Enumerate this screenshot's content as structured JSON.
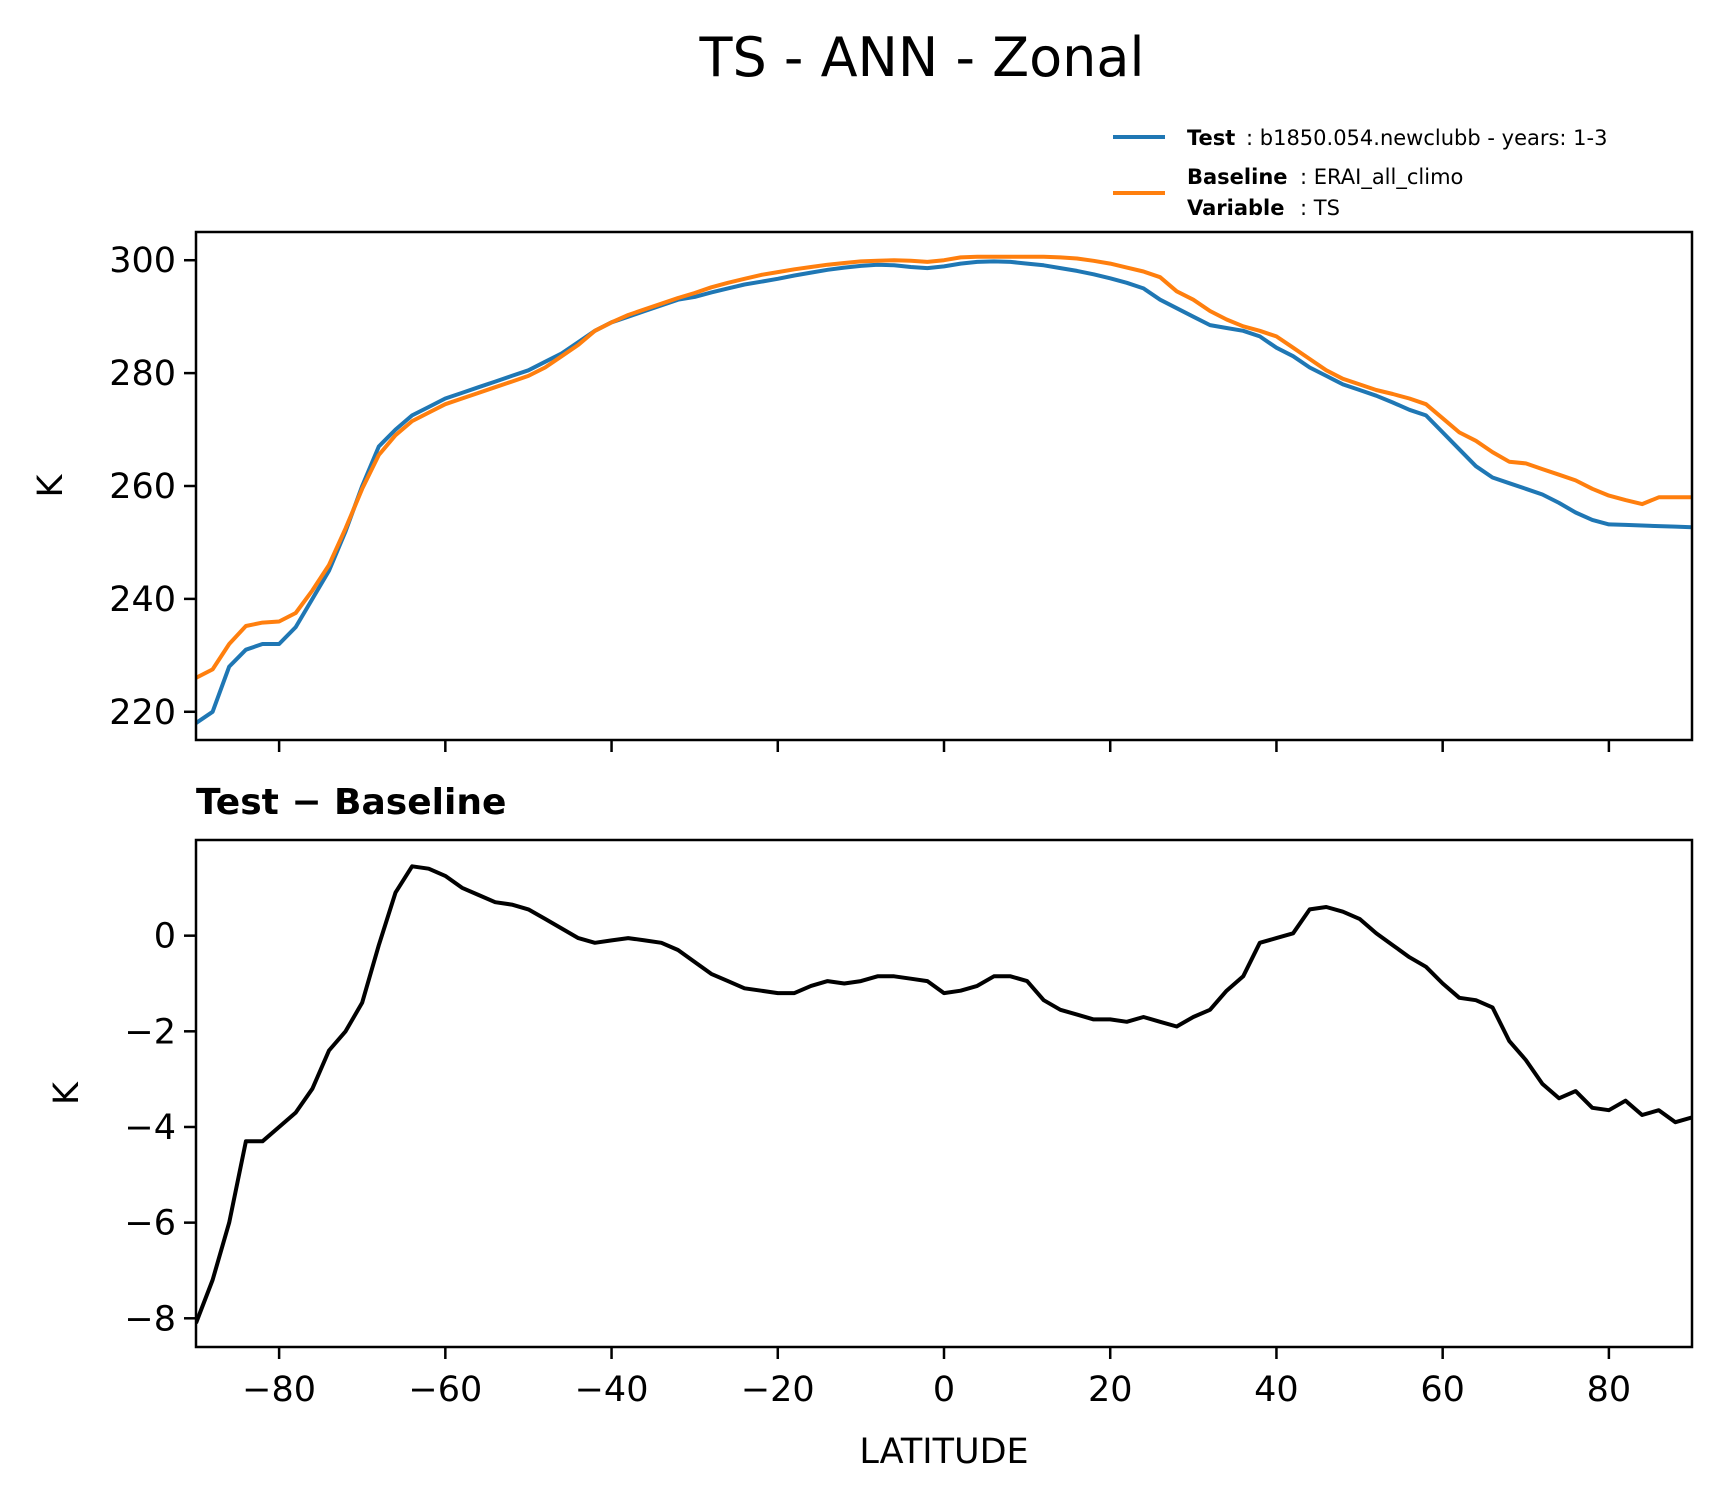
{
  "figure": {
    "title": "TS - ANN - Zonal"
  },
  "legend": {
    "test_key": "Test",
    "test_value": ": b1850.054.newclubb - years: 1-3",
    "baseline_key": "Baseline",
    "baseline_value": ": ERAI_all_climo",
    "variable_key": "Variable",
    "variable_value": ": TS"
  },
  "chart_data": [
    {
      "type": "line",
      "title": "",
      "xlabel": "",
      "ylabel": "K",
      "xlim": [
        -90,
        90
      ],
      "ylim": [
        215,
        305
      ],
      "xticks": [
        -80,
        -60,
        -40,
        -20,
        0,
        20,
        40,
        60,
        80
      ],
      "yticks": [
        220,
        240,
        260,
        280,
        300
      ],
      "ytick_labels": [
        "220",
        "240",
        "260",
        "280",
        "300"
      ],
      "x": [
        -90,
        -88,
        -86,
        -84,
        -82,
        -80,
        -78,
        -76,
        -74,
        -72,
        -70,
        -68,
        -66,
        -64,
        -62,
        -60,
        -58,
        -56,
        -54,
        -52,
        -50,
        -48,
        -46,
        -44,
        -42,
        -40,
        -38,
        -36,
        -34,
        -32,
        -30,
        -28,
        -26,
        -24,
        -22,
        -20,
        -18,
        -16,
        -14,
        -12,
        -10,
        -8,
        -6,
        -4,
        -2,
        0,
        2,
        4,
        6,
        8,
        10,
        12,
        14,
        16,
        18,
        20,
        22,
        24,
        26,
        28,
        30,
        32,
        34,
        36,
        38,
        40,
        42,
        44,
        46,
        48,
        50,
        52,
        54,
        56,
        58,
        60,
        62,
        64,
        66,
        68,
        70,
        72,
        74,
        76,
        78,
        80,
        82,
        84,
        86,
        88,
        90
      ],
      "series": [
        {
          "name": "Test",
          "color": "#1f77b4",
          "values": [
            218,
            220,
            228,
            231,
            232,
            232,
            235,
            240,
            245,
            252,
            260,
            267,
            270,
            272.5,
            274,
            275.5,
            276.5,
            277.5,
            278.5,
            279.5,
            280.5,
            282,
            283.5,
            285.5,
            287.5,
            289,
            290,
            291,
            292,
            293,
            293.5,
            294.3,
            295,
            295.7,
            296.2,
            296.7,
            297.3,
            297.8,
            298.3,
            298.7,
            299,
            299.2,
            299.1,
            298.8,
            298.6,
            298.9,
            299.4,
            299.7,
            299.8,
            299.7,
            299.4,
            299.1,
            298.6,
            298.1,
            297.5,
            296.8,
            296,
            295,
            293,
            291.5,
            290,
            288.5,
            288,
            287.5,
            286.5,
            284.5,
            283,
            281,
            279.5,
            278,
            277,
            276,
            274.8,
            273.5,
            272.5,
            269.5,
            266.5,
            263.5,
            261.5,
            260.5,
            259.5,
            258.5,
            257,
            255.3,
            254,
            253.2,
            253.1,
            253,
            252.9,
            252.8,
            252.7
          ]
        },
        {
          "name": "Baseline",
          "color": "#ff7f0e",
          "values": [
            226,
            227.5,
            232,
            235.2,
            235.8,
            236,
            237.5,
            241.5,
            246,
            252.5,
            259.5,
            265.5,
            269,
            271.5,
            273,
            274.5,
            275.5,
            276.5,
            277.5,
            278.5,
            279.5,
            281,
            283,
            285,
            287.5,
            289,
            290.3,
            291.3,
            292.3,
            293.3,
            294.2,
            295.2,
            296,
            296.7,
            297.4,
            297.9,
            298.4,
            298.8,
            299.2,
            299.5,
            299.8,
            299.9,
            300,
            299.9,
            299.7,
            300,
            300.5,
            300.6,
            300.6,
            300.6,
            300.6,
            300.6,
            300.5,
            300.3,
            299.9,
            299.4,
            298.7,
            298,
            297,
            294.5,
            293,
            291,
            289.5,
            288.3,
            287.5,
            286.5,
            284.5,
            282.5,
            280.5,
            279,
            278,
            277,
            276.3,
            275.5,
            274.5,
            272,
            269.5,
            268,
            266,
            264.3,
            264,
            263,
            262,
            261,
            259.5,
            258.3,
            257.5,
            256.8,
            258,
            258,
            258
          ]
        }
      ]
    },
    {
      "type": "line",
      "title": "Test − Baseline",
      "xlabel": "LATITUDE",
      "ylabel": "K",
      "xlim": [
        -90,
        90
      ],
      "ylim": [
        -8.6,
        2.0
      ],
      "xticks": [
        -80,
        -60,
        -40,
        -20,
        0,
        20,
        40,
        60,
        80
      ],
      "xtick_labels": [
        "−80",
        "−60",
        "−40",
        "−20",
        "0",
        "20",
        "40",
        "60",
        "80"
      ],
      "yticks": [
        -8,
        -6,
        -4,
        -2,
        0
      ],
      "ytick_labels": [
        "−8",
        "−6",
        "−4",
        "−2",
        "0"
      ],
      "x": [
        -90,
        -88,
        -86,
        -84,
        -82,
        -80,
        -78,
        -76,
        -74,
        -72,
        -70,
        -68,
        -66,
        -64,
        -62,
        -60,
        -58,
        -56,
        -54,
        -52,
        -50,
        -48,
        -46,
        -44,
        -42,
        -40,
        -38,
        -36,
        -34,
        -32,
        -30,
        -28,
        -26,
        -24,
        -22,
        -20,
        -18,
        -16,
        -14,
        -12,
        -10,
        -8,
        -6,
        -4,
        -2,
        0,
        2,
        4,
        6,
        8,
        10,
        12,
        14,
        16,
        18,
        20,
        22,
        24,
        26,
        28,
        30,
        32,
        34,
        36,
        38,
        40,
        42,
        44,
        46,
        48,
        50,
        52,
        54,
        56,
        58,
        60,
        62,
        64,
        66,
        68,
        70,
        72,
        74,
        76,
        78,
        80,
        82,
        84,
        86,
        88,
        90
      ],
      "series": [
        {
          "name": "Test − Baseline",
          "color": "#000000",
          "values": [
            -8.1,
            -7.2,
            -6,
            -4.3,
            -4.3,
            -4.0,
            -3.7,
            -3.2,
            -2.4,
            -2.0,
            -1.4,
            -0.2,
            0.9,
            1.45,
            1.4,
            1.25,
            1.0,
            0.85,
            0.7,
            0.65,
            0.55,
            0.35,
            0.15,
            -0.05,
            -0.15,
            -0.1,
            -0.05,
            -0.1,
            -0.15,
            -0.3,
            -0.55,
            -0.8,
            -0.95,
            -1.1,
            -1.15,
            -1.2,
            -1.2,
            -1.05,
            -0.95,
            -1.0,
            -0.95,
            -0.85,
            -0.85,
            -0.9,
            -0.95,
            -1.2,
            -1.15,
            -1.05,
            -0.85,
            -0.85,
            -0.95,
            -1.35,
            -1.55,
            -1.65,
            -1.75,
            -1.75,
            -1.8,
            -1.7,
            -1.8,
            -1.9,
            -1.7,
            -1.55,
            -1.15,
            -0.85,
            -0.15,
            -0.05,
            0.05,
            0.55,
            0.6,
            0.5,
            0.35,
            0.05,
            -0.2,
            -0.45,
            -0.65,
            -1.0,
            -1.3,
            -1.35,
            -1.5,
            -2.2,
            -2.6,
            -3.1,
            -3.4,
            -3.25,
            -3.6,
            -3.65,
            -3.45,
            -3.75,
            -3.65,
            -3.9,
            -3.8
          ]
        }
      ]
    }
  ]
}
